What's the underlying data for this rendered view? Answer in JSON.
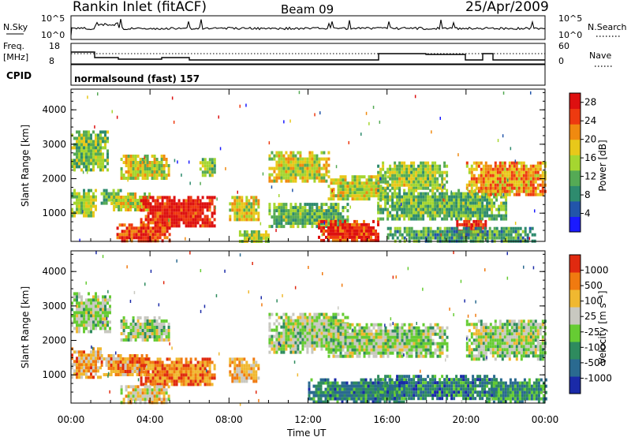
{
  "header": {
    "station": "Rankin Inlet (fitACF)",
    "beam": "Beam 09",
    "date": "25/Apr/2009"
  },
  "status_panels": {
    "nsky_label": "N.Sky",
    "nsky_ticks": [
      "10^5",
      "10^0"
    ],
    "nsearch_label": "N.Search",
    "nsearch_ticks": [
      "10^5",
      "10^0"
    ],
    "freq_label": "Freq.",
    "freq_unit": "[MHz]",
    "freq_ticks": [
      "18",
      "8"
    ],
    "nave_label": "Nave",
    "nave_ticks": [
      "60",
      "0"
    ],
    "cpid_label": "CPID",
    "cpid_value": "normalsound (fast) 157"
  },
  "chart_data": [
    {
      "type": "heatmap",
      "title": "",
      "ylabel": "Slant Range [km]",
      "xlabel": "",
      "x_ticks": [
        "00:00",
        "04:00",
        "08:00",
        "12:00",
        "16:00",
        "20:00",
        "00:00"
      ],
      "y_ticks": [
        1000,
        2000,
        3000,
        4000
      ],
      "ylim": [
        180,
        4600
      ],
      "xlim_hours": [
        0,
        24
      ],
      "colorbar": {
        "label": "Power [dB]",
        "ticks": [
          "4",
          "8",
          "12",
          "16",
          "20",
          "24",
          "28"
        ],
        "range": [
          0,
          30
        ],
        "colors": [
          "#1a1aff",
          "#2255aa",
          "#2e8b6e",
          "#55aa55",
          "#a5d630",
          "#e8c81a",
          "#f08a10",
          "#ee3a10",
          "#dd1010"
        ]
      },
      "regions": [
        {
          "t0": 0.0,
          "t1": 1.8,
          "r0": 2300,
          "r1": 3400,
          "level": 0.45
        },
        {
          "t0": 0.0,
          "t1": 1.2,
          "r0": 900,
          "r1": 1700,
          "level": 0.5
        },
        {
          "t0": 1.5,
          "t1": 2.5,
          "r0": 1300,
          "r1": 1700,
          "level": 0.35
        },
        {
          "t0": 2.5,
          "t1": 5.0,
          "r0": 2000,
          "r1": 2700,
          "level": 0.55
        },
        {
          "t0": 2.0,
          "t1": 4.0,
          "r0": 1100,
          "r1": 1600,
          "level": 0.55
        },
        {
          "t0": 3.5,
          "t1": 7.3,
          "r0": 600,
          "r1": 1500,
          "level": 0.92
        },
        {
          "t0": 2.3,
          "t1": 5.0,
          "r0": 200,
          "r1": 700,
          "level": 0.85
        },
        {
          "t0": 6.5,
          "t1": 7.3,
          "r0": 2100,
          "r1": 2600,
          "level": 0.45
        },
        {
          "t0": 8.0,
          "t1": 9.5,
          "r0": 800,
          "r1": 1500,
          "level": 0.55
        },
        {
          "t0": 8.5,
          "t1": 10.0,
          "r0": 200,
          "r1": 500,
          "level": 0.5
        },
        {
          "t0": 10.0,
          "t1": 13.0,
          "r0": 1900,
          "r1": 2800,
          "level": 0.55
        },
        {
          "t0": 10.0,
          "t1": 14.0,
          "r0": 600,
          "r1": 1300,
          "level": 0.4
        },
        {
          "t0": 12.5,
          "t1": 15.5,
          "r0": 200,
          "r1": 800,
          "level": 0.88
        },
        {
          "t0": 13.0,
          "t1": 16.0,
          "r0": 1400,
          "r1": 2100,
          "level": 0.55
        },
        {
          "t0": 15.5,
          "t1": 19.0,
          "r0": 1700,
          "r1": 2500,
          "level": 0.5
        },
        {
          "t0": 15.5,
          "t1": 22.0,
          "r0": 800,
          "r1": 1700,
          "level": 0.4
        },
        {
          "t0": 19.5,
          "t1": 21.0,
          "r0": 300,
          "r1": 800,
          "level": 0.9
        },
        {
          "t0": 20.0,
          "t1": 24.0,
          "r0": 1500,
          "r1": 2500,
          "level": 0.7
        },
        {
          "t0": 16.0,
          "t1": 23.5,
          "r0": 200,
          "r1": 600,
          "level": 0.35
        }
      ]
    },
    {
      "type": "heatmap",
      "title": "",
      "ylabel": "Slant Range [km]",
      "xlabel": "Time UT",
      "x_ticks": [
        "00:00",
        "04:00",
        "08:00",
        "12:00",
        "16:00",
        "20:00",
        "00:00"
      ],
      "y_ticks": [
        1000,
        2000,
        3000,
        4000
      ],
      "ylim": [
        180,
        4600
      ],
      "xlim_hours": [
        0,
        24
      ],
      "colorbar": {
        "label": "Velocity [m s⁻¹]",
        "ticks": [
          "1000",
          "500",
          "100",
          "25",
          "-25",
          "-100",
          "-500",
          "-1000"
        ],
        "range": [
          -1200,
          1200
        ],
        "colors": [
          "#1a2aa8",
          "#2a6a90",
          "#2e8b5e",
          "#66cc33",
          "#c8c8c0",
          "#f0b830",
          "#f07a10",
          "#e02a10"
        ]
      },
      "regions": [
        {
          "t0": 0.0,
          "t1": 2.0,
          "r0": 2300,
          "r1": 3400,
          "level": 0.5
        },
        {
          "t0": 0.0,
          "t1": 1.5,
          "r0": 900,
          "r1": 1800,
          "level": 0.72
        },
        {
          "t0": 1.5,
          "t1": 4.0,
          "r0": 1000,
          "r1": 1600,
          "level": 0.75
        },
        {
          "t0": 3.5,
          "t1": 7.3,
          "r0": 700,
          "r1": 1500,
          "level": 0.8
        },
        {
          "t0": 2.5,
          "t1": 5.0,
          "r0": 200,
          "r1": 700,
          "level": 0.62
        },
        {
          "t0": 2.5,
          "t1": 5.0,
          "r0": 2000,
          "r1": 2700,
          "level": 0.5
        },
        {
          "t0": 8.0,
          "t1": 9.5,
          "r0": 800,
          "r1": 1500,
          "level": 0.7
        },
        {
          "t0": 10.0,
          "t1": 14.0,
          "r0": 1700,
          "r1": 2800,
          "level": 0.5
        },
        {
          "t0": 13.0,
          "t1": 19.0,
          "r0": 1500,
          "r1": 2500,
          "level": 0.5
        },
        {
          "t0": 12.0,
          "t1": 17.0,
          "r0": 200,
          "r1": 900,
          "level": 0.28
        },
        {
          "t0": 15.5,
          "t1": 21.5,
          "r0": 300,
          "r1": 1000,
          "level": 0.25
        },
        {
          "t0": 20.0,
          "t1": 24.0,
          "r0": 1500,
          "r1": 2600,
          "level": 0.5
        },
        {
          "t0": 21.0,
          "t1": 24.0,
          "r0": 200,
          "r1": 900,
          "level": 0.3
        }
      ]
    }
  ]
}
